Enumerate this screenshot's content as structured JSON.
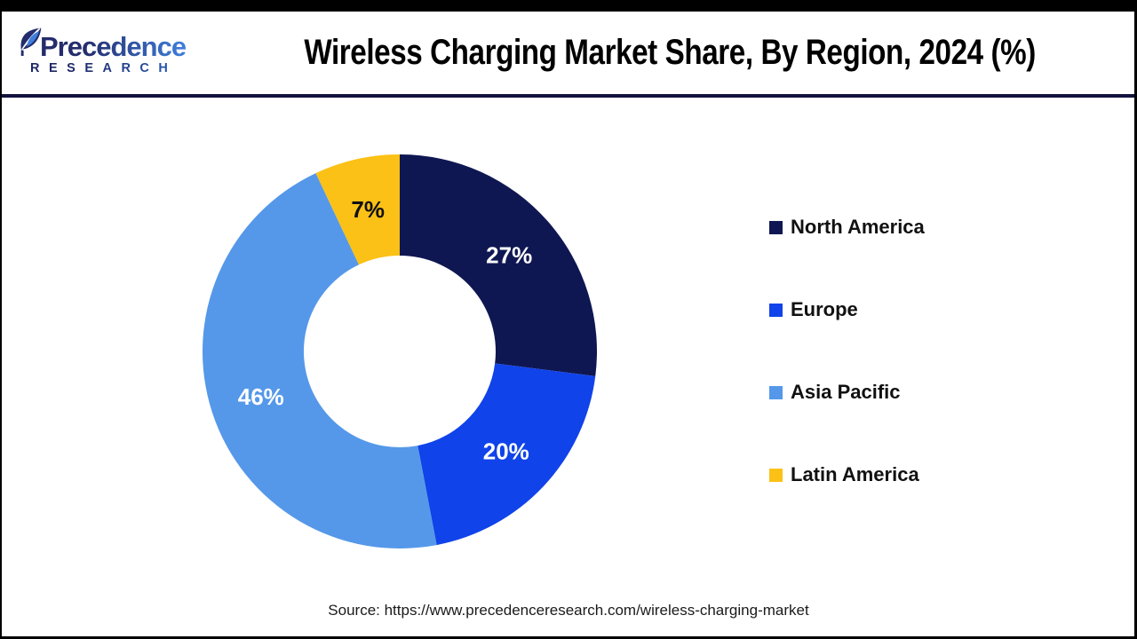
{
  "header": {
    "logo": {
      "line1": "Precedence",
      "line2": "RESEARCH"
    },
    "title": "Wireless Charging Market Share, By Region, 2024 (%)"
  },
  "chart_data": {
    "type": "pie",
    "subtype": "donut",
    "title": "Wireless Charging Market Share, By Region, 2024 (%)",
    "categories": [
      "North America",
      "Europe",
      "Asia Pacific",
      "Latin America"
    ],
    "values": [
      27,
      20,
      46,
      7
    ],
    "slice_labels": [
      "27%",
      "20%",
      "46%",
      "7%"
    ],
    "colors": [
      "#0F1752",
      "#1043E9",
      "#5598E9",
      "#FBC116"
    ],
    "slice_label_colors": [
      "#FFFFFF",
      "#FFFFFF",
      "#FFFFFF",
      "#111111"
    ],
    "start_angle_deg": 0,
    "direction": "clockwise",
    "inner_radius_ratio": 0.4865,
    "legend_position": "right",
    "legend_text_color": "#111111"
  },
  "source": {
    "text": "Source: https://www.precedenceresearch.com/wireless-charging-market"
  },
  "frame_colors": {
    "top_bar": "#000000",
    "divider": "#12133E",
    "border": "#000000"
  }
}
